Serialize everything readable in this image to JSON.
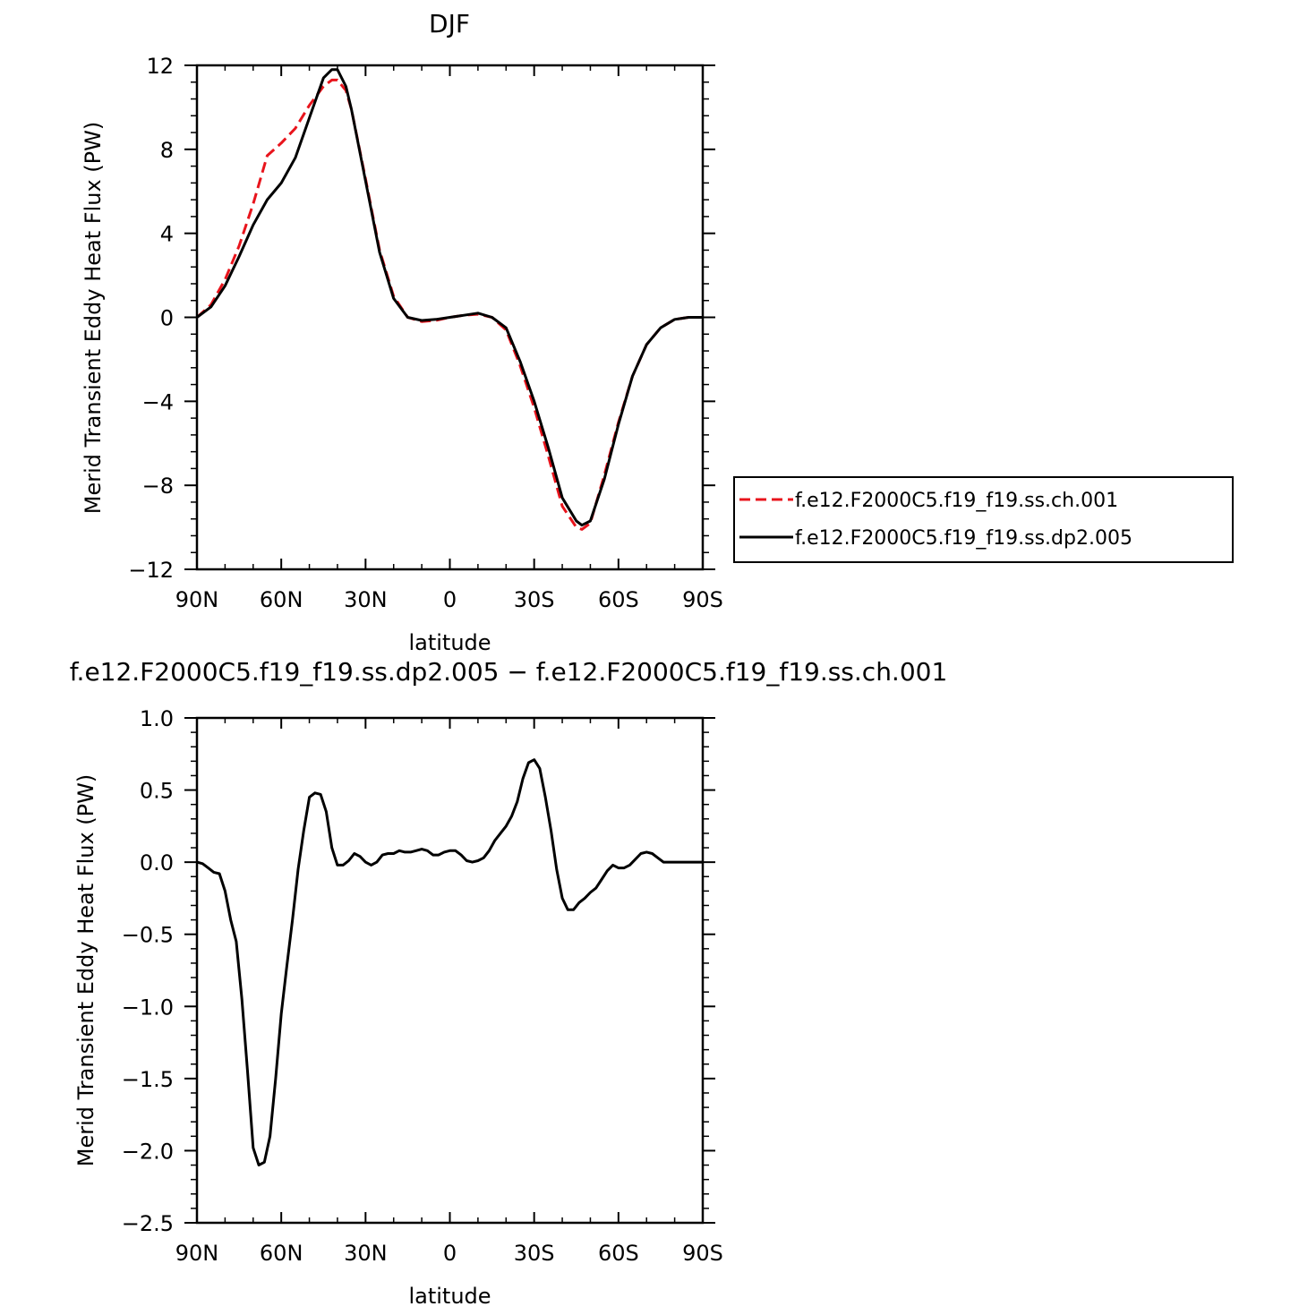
{
  "chart_data": [
    {
      "type": "line",
      "title": "DJF",
      "xlabel": "latitude",
      "ylabel": "Merid Transient Eddy Heat Flux (PW)",
      "x_ticks": [
        {
          "value": 90,
          "label": "90N"
        },
        {
          "value": 60,
          "label": "60N"
        },
        {
          "value": 30,
          "label": "30N"
        },
        {
          "value": 0,
          "label": "0"
        },
        {
          "value": -30,
          "label": "30S"
        },
        {
          "value": -60,
          "label": "60S"
        },
        {
          "value": -90,
          "label": "90S"
        }
      ],
      "xlim": [
        90,
        -90
      ],
      "ylim": [
        -12,
        12
      ],
      "y_ticks": [
        {
          "value": 12,
          "label": "12"
        },
        {
          "value": 8,
          "label": "8"
        },
        {
          "value": 4,
          "label": "4"
        },
        {
          "value": 0,
          "label": "0"
        },
        {
          "value": -4,
          "label": "−4"
        },
        {
          "value": -8,
          "label": "−8"
        },
        {
          "value": -12,
          "label": "−12"
        }
      ],
      "legend_position": "right",
      "series": [
        {
          "name": "f.e12.F2000C5.f19_f19.ss.ch.001",
          "color": "#e8141c",
          "dash": "dashed",
          "x": [
            90,
            85,
            80,
            75,
            70,
            65,
            60,
            55,
            50,
            45,
            42,
            40,
            37,
            35,
            30,
            25,
            20,
            15,
            10,
            5,
            0,
            -5,
            -10,
            -15,
            -20,
            -25,
            -30,
            -35,
            -40,
            -45,
            -47,
            -50,
            -55,
            -60,
            -65,
            -70,
            -75,
            -80,
            -85,
            -90
          ],
          "values": [
            0.0,
            0.6,
            1.8,
            3.4,
            5.4,
            7.7,
            8.3,
            9.0,
            10.1,
            11.0,
            11.3,
            11.3,
            10.8,
            9.9,
            6.6,
            3.2,
            1.0,
            0.0,
            -0.2,
            -0.15,
            0.0,
            0.1,
            0.15,
            0.0,
            -0.6,
            -2.3,
            -4.3,
            -6.6,
            -9.0,
            -10.0,
            -10.1,
            -9.8,
            -7.5,
            -5.0,
            -2.8,
            -1.3,
            -0.5,
            -0.1,
            0.0,
            0.0
          ]
        },
        {
          "name": "f.e12.F2000C5.f19_f19.ss.dp2.005",
          "color": "#000000",
          "dash": "solid",
          "x": [
            90,
            85,
            80,
            75,
            70,
            65,
            60,
            55,
            50,
            45,
            42,
            40,
            37,
            35,
            30,
            25,
            20,
            15,
            10,
            5,
            0,
            -5,
            -10,
            -15,
            -20,
            -25,
            -30,
            -35,
            -40,
            -45,
            -47,
            -50,
            -55,
            -60,
            -65,
            -70,
            -75,
            -80,
            -85,
            -90
          ],
          "values": [
            0.0,
            0.5,
            1.5,
            2.9,
            4.4,
            5.6,
            6.4,
            7.6,
            9.5,
            11.4,
            11.8,
            11.8,
            11.0,
            9.9,
            6.5,
            3.1,
            0.9,
            0.0,
            -0.15,
            -0.1,
            0.0,
            0.1,
            0.2,
            0.0,
            -0.5,
            -2.1,
            -4.0,
            -6.2,
            -8.6,
            -9.7,
            -9.9,
            -9.7,
            -7.7,
            -5.1,
            -2.8,
            -1.3,
            -0.5,
            -0.1,
            0.0,
            0.0
          ]
        }
      ]
    },
    {
      "type": "line",
      "title": "f.e12.F2000C5.f19_f19.ss.dp2.005 − f.e12.F2000C5.f19_f19.ss.ch.001",
      "xlabel": "latitude",
      "ylabel": "Merid Transient Eddy Heat Flux (PW)",
      "x_ticks": [
        {
          "value": 90,
          "label": "90N"
        },
        {
          "value": 60,
          "label": "60N"
        },
        {
          "value": 30,
          "label": "30N"
        },
        {
          "value": 0,
          "label": "0"
        },
        {
          "value": -30,
          "label": "30S"
        },
        {
          "value": -60,
          "label": "60S"
        },
        {
          "value": -90,
          "label": "90S"
        }
      ],
      "xlim": [
        90,
        -90
      ],
      "ylim": [
        -2.5,
        1.0
      ],
      "y_ticks": [
        {
          "value": 1.0,
          "label": "1.0"
        },
        {
          "value": 0.5,
          "label": "0.5"
        },
        {
          "value": 0.0,
          "label": "0.0"
        },
        {
          "value": -0.5,
          "label": "−0.5"
        },
        {
          "value": -1.0,
          "label": "−1.0"
        },
        {
          "value": -1.5,
          "label": "−1.5"
        },
        {
          "value": -2.0,
          "label": "−2.0"
        },
        {
          "value": -2.5,
          "label": "−2.5"
        }
      ],
      "series": [
        {
          "color": "#000000",
          "dash": "solid",
          "x": [
            90,
            88,
            86,
            84,
            82,
            80,
            78,
            76,
            74,
            72,
            70,
            68,
            66,
            64,
            62,
            60,
            58,
            56,
            54,
            52,
            50,
            48,
            46,
            44,
            42,
            40,
            38,
            36,
            34,
            32,
            30,
            28,
            26,
            24,
            22,
            20,
            18,
            16,
            14,
            12,
            10,
            8,
            6,
            4,
            2,
            0,
            -2,
            -4,
            -6,
            -8,
            -10,
            -12,
            -14,
            -16,
            -18,
            -20,
            -22,
            -24,
            -26,
            -28,
            -30,
            -32,
            -34,
            -36,
            -38,
            -40,
            -42,
            -44,
            -46,
            -48,
            -50,
            -52,
            -54,
            -56,
            -58,
            -60,
            -62,
            -64,
            -66,
            -68,
            -70,
            -72,
            -74,
            -76,
            -78,
            -80,
            -82,
            -84,
            -86,
            -88,
            -90
          ],
          "values": [
            0.0,
            -0.01,
            -0.04,
            -0.07,
            -0.08,
            -0.2,
            -0.4,
            -0.55,
            -0.95,
            -1.45,
            -1.98,
            -2.1,
            -2.08,
            -1.9,
            -1.5,
            -1.05,
            -0.72,
            -0.4,
            -0.05,
            0.22,
            0.45,
            0.48,
            0.47,
            0.35,
            0.1,
            -0.02,
            -0.02,
            0.01,
            0.06,
            0.04,
            0.0,
            -0.02,
            0.0,
            0.05,
            0.06,
            0.06,
            0.08,
            0.07,
            0.07,
            0.08,
            0.09,
            0.08,
            0.05,
            0.05,
            0.07,
            0.08,
            0.08,
            0.05,
            0.01,
            0.0,
            0.01,
            0.03,
            0.08,
            0.15,
            0.2,
            0.25,
            0.32,
            0.42,
            0.58,
            0.69,
            0.71,
            0.65,
            0.45,
            0.22,
            -0.05,
            -0.25,
            -0.33,
            -0.33,
            -0.28,
            -0.25,
            -0.21,
            -0.18,
            -0.12,
            -0.06,
            -0.02,
            -0.04,
            -0.04,
            -0.02,
            0.02,
            0.06,
            0.07,
            0.06,
            0.03,
            0.0,
            0.0,
            0.0,
            0.0,
            0.0,
            0.0,
            0.0,
            0.0
          ]
        }
      ]
    }
  ]
}
